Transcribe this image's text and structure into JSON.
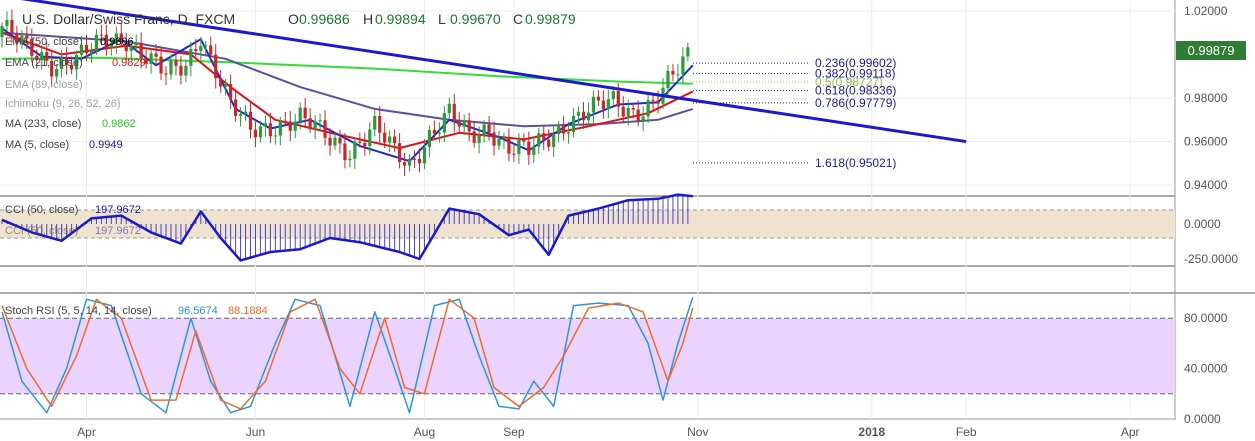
{
  "header": {
    "symbol_title": "U.S. Dollar/Swiss Franc, D, FXCM",
    "ohlc": [
      {
        "key": "O",
        "value": "0.99686"
      },
      {
        "key": "H",
        "value": "0.99894"
      },
      {
        "key": "L",
        "value": "0.99670"
      },
      {
        "key": "C",
        "value": "0.99879"
      }
    ]
  },
  "legend": [
    {
      "label": "EMA (50, close)",
      "value": "0.9806",
      "color": "#000000"
    },
    {
      "label": "EMA (21, close)",
      "value": "0.9829",
      "color": "#e0101a"
    },
    {
      "label": "EMA (89, close)",
      "value": "",
      "color": "#9aa0a6"
    },
    {
      "label": "Ichimoku (9, 26, 52, 26)",
      "value": "",
      "color": "#9aa0a6"
    },
    {
      "label": "MA (233, close)",
      "value": "0.9862",
      "color": "#22cc22"
    },
    {
      "label": "MA (5, close)",
      "value": "0.9949",
      "color": "#1a1aaa"
    }
  ],
  "price_badge": {
    "value": "0.99879",
    "color": "#2e7d32"
  },
  "fibonacci": [
    {
      "ratio": "0.236",
      "level": "0.99602",
      "value": 0.99602,
      "color": "#1a1aaa"
    },
    {
      "ratio": "0.382",
      "level": "0.99118",
      "value": 0.99118,
      "color": "#1a1aaa"
    },
    {
      "ratio": "0.5",
      "level": "0.98727",
      "value": 0.98727,
      "color": "#8bc34a"
    },
    {
      "ratio": "0.618",
      "level": "0.98336",
      "value": 0.98336,
      "color": "#1a1aaa"
    },
    {
      "ratio": "0.786",
      "level": "0.97779",
      "value": 0.97779,
      "color": "#1a1aaa"
    },
    {
      "ratio": "1.618",
      "level": "0.95021",
      "value": 0.95021,
      "color": "#1a1aaa"
    }
  ],
  "cci": {
    "label": "CCI (50, close)",
    "value": "197.9672",
    "color": "#1a1aaa"
  },
  "stoch": {
    "label": "Stoch RSI (5, 5, 14, 14, close)",
    "k_value": "96.5674",
    "k_color": "#2b96e0",
    "d_value": "88.1884",
    "d_color": "#f06a2a"
  },
  "chart_data": [
    {
      "type": "candlestick",
      "title": "U.S. Dollar/Swiss Franc, D, FXCM",
      "ylim": [
        0.935,
        1.025
      ],
      "yticks": [
        "1.02000",
        "0.98000",
        "0.96000",
        "0.94000"
      ],
      "ytick_values": [
        1.02,
        0.98,
        0.96,
        0.94
      ],
      "xticks": [
        "Apr",
        "Jun",
        "Aug",
        "Sep",
        "Nov",
        "2018",
        "Feb",
        "Apr"
      ],
      "xtick_indices": [
        17,
        51,
        85,
        103,
        140,
        175,
        194,
        227
      ],
      "close_path": [
        {
          "i": 0,
          "v": 1.013
        },
        {
          "i": 5,
          "v": 1.002
        },
        {
          "i": 10,
          "v": 0.996
        },
        {
          "i": 15,
          "v": 0.998
        },
        {
          "i": 20,
          "v": 1.005
        },
        {
          "i": 25,
          "v": 1.008
        },
        {
          "i": 30,
          "v": 0.997
        },
        {
          "i": 33,
          "v": 0.99
        },
        {
          "i": 37,
          "v": 0.995
        },
        {
          "i": 40,
          "v": 1.01
        },
        {
          "i": 43,
          "v": 0.993
        },
        {
          "i": 46,
          "v": 0.976
        },
        {
          "i": 50,
          "v": 0.965
        },
        {
          "i": 55,
          "v": 0.968
        },
        {
          "i": 60,
          "v": 0.97
        },
        {
          "i": 65,
          "v": 0.963
        },
        {
          "i": 70,
          "v": 0.956
        },
        {
          "i": 75,
          "v": 0.966
        },
        {
          "i": 79,
          "v": 0.955
        },
        {
          "i": 82,
          "v": 0.95
        },
        {
          "i": 86,
          "v": 0.963
        },
        {
          "i": 90,
          "v": 0.972
        },
        {
          "i": 94,
          "v": 0.962
        },
        {
          "i": 98,
          "v": 0.967
        },
        {
          "i": 102,
          "v": 0.957
        },
        {
          "i": 106,
          "v": 0.955
        },
        {
          "i": 109,
          "v": 0.96
        },
        {
          "i": 114,
          "v": 0.97
        },
        {
          "i": 118,
          "v": 0.974
        },
        {
          "i": 123,
          "v": 0.978
        },
        {
          "i": 127,
          "v": 0.974
        },
        {
          "i": 131,
          "v": 0.978
        },
        {
          "i": 135,
          "v": 0.989
        },
        {
          "i": 138,
          "v": 0.999
        }
      ],
      "trendline": {
        "from": {
          "i": 0,
          "v": 1.027
        },
        "to": {
          "i": 194,
          "v": 0.96
        }
      },
      "ma_233": [
        {
          "i": 0,
          "v": 0.998
        },
        {
          "i": 20,
          "v": 0.9985
        },
        {
          "i": 45,
          "v": 0.9965
        },
        {
          "i": 75,
          "v": 0.9935
        },
        {
          "i": 100,
          "v": 0.99
        },
        {
          "i": 125,
          "v": 0.9875
        },
        {
          "i": 139,
          "v": 0.9865
        }
      ],
      "ema_89": [
        {
          "i": 0,
          "v": 1.01
        },
        {
          "i": 25,
          "v": 1.006
        },
        {
          "i": 45,
          "v": 0.998
        },
        {
          "i": 60,
          "v": 0.985
        },
        {
          "i": 75,
          "v": 0.975
        },
        {
          "i": 90,
          "v": 0.97
        },
        {
          "i": 105,
          "v": 0.967
        },
        {
          "i": 120,
          "v": 0.968
        },
        {
          "i": 132,
          "v": 0.97
        },
        {
          "i": 139,
          "v": 0.975
        }
      ],
      "ema_21": [
        {
          "i": 0,
          "v": 1.01
        },
        {
          "i": 12,
          "v": 1.0
        },
        {
          "i": 25,
          "v": 1.004
        },
        {
          "i": 38,
          "v": 1.0
        },
        {
          "i": 46,
          "v": 0.985
        },
        {
          "i": 55,
          "v": 0.97
        },
        {
          "i": 68,
          "v": 0.963
        },
        {
          "i": 80,
          "v": 0.957
        },
        {
          "i": 92,
          "v": 0.964
        },
        {
          "i": 105,
          "v": 0.961
        },
        {
          "i": 118,
          "v": 0.967
        },
        {
          "i": 130,
          "v": 0.973
        },
        {
          "i": 139,
          "v": 0.983
        }
      ],
      "ma_5": [
        {
          "i": 0,
          "v": 1.012
        },
        {
          "i": 8,
          "v": 0.999
        },
        {
          "i": 16,
          "v": 0.998
        },
        {
          "i": 24,
          "v": 1.007
        },
        {
          "i": 31,
          "v": 0.995
        },
        {
          "i": 40,
          "v": 1.007
        },
        {
          "i": 47,
          "v": 0.975
        },
        {
          "i": 54,
          "v": 0.966
        },
        {
          "i": 62,
          "v": 0.97
        },
        {
          "i": 72,
          "v": 0.958
        },
        {
          "i": 82,
          "v": 0.951
        },
        {
          "i": 90,
          "v": 0.97
        },
        {
          "i": 100,
          "v": 0.962
        },
        {
          "i": 106,
          "v": 0.956
        },
        {
          "i": 114,
          "v": 0.968
        },
        {
          "i": 124,
          "v": 0.977
        },
        {
          "i": 132,
          "v": 0.978
        },
        {
          "i": 139,
          "v": 0.995
        }
      ]
    },
    {
      "type": "line",
      "title": "CCI (50, close)",
      "ylim": [
        -300,
        200
      ],
      "yticks": [
        "0.0000",
        "-250.0000"
      ],
      "ytick_values": [
        0,
        -250
      ],
      "band": [
        -100,
        100
      ],
      "series": [
        {
          "name": "CCI (50, close)",
          "points": [
            {
              "i": 0,
              "v": 30
            },
            {
              "i": 6,
              "v": -60
            },
            {
              "i": 12,
              "v": -120
            },
            {
              "i": 18,
              "v": 40
            },
            {
              "i": 24,
              "v": 60
            },
            {
              "i": 30,
              "v": -60
            },
            {
              "i": 36,
              "v": -140
            },
            {
              "i": 40,
              "v": 90
            },
            {
              "i": 44,
              "v": -100
            },
            {
              "i": 48,
              "v": -260
            },
            {
              "i": 54,
              "v": -200
            },
            {
              "i": 60,
              "v": -180
            },
            {
              "i": 66,
              "v": -100
            },
            {
              "i": 72,
              "v": -130
            },
            {
              "i": 80,
              "v": -200
            },
            {
              "i": 84,
              "v": -250
            },
            {
              "i": 90,
              "v": 110
            },
            {
              "i": 96,
              "v": 70
            },
            {
              "i": 102,
              "v": -80
            },
            {
              "i": 106,
              "v": -40
            },
            {
              "i": 110,
              "v": -220
            },
            {
              "i": 114,
              "v": 60
            },
            {
              "i": 120,
              "v": 110
            },
            {
              "i": 126,
              "v": 170
            },
            {
              "i": 132,
              "v": 180
            },
            {
              "i": 136,
              "v": 210
            },
            {
              "i": 139,
              "v": 197.9672
            }
          ]
        }
      ]
    },
    {
      "type": "line",
      "title": "Stoch RSI (5, 5, 14, 14, close)",
      "ylim": [
        0,
        100
      ],
      "yticks": [
        "80.0000",
        "40.0000",
        "0.0000"
      ],
      "ytick_values": [
        80,
        40,
        0
      ],
      "band": [
        20,
        80
      ],
      "series": [
        {
          "name": "K",
          "points": [
            {
              "i": 0,
              "v": 85
            },
            {
              "i": 4,
              "v": 30
            },
            {
              "i": 9,
              "v": 5
            },
            {
              "i": 13,
              "v": 40
            },
            {
              "i": 17,
              "v": 95
            },
            {
              "i": 22,
              "v": 90
            },
            {
              "i": 28,
              "v": 20
            },
            {
              "i": 33,
              "v": 5
            },
            {
              "i": 38,
              "v": 80
            },
            {
              "i": 42,
              "v": 30
            },
            {
              "i": 46,
              "v": 5
            },
            {
              "i": 50,
              "v": 10
            },
            {
              "i": 55,
              "v": 60
            },
            {
              "i": 59,
              "v": 95
            },
            {
              "i": 64,
              "v": 90
            },
            {
              "i": 70,
              "v": 10
            },
            {
              "i": 75,
              "v": 85
            },
            {
              "i": 79,
              "v": 40
            },
            {
              "i": 82,
              "v": 5
            },
            {
              "i": 87,
              "v": 90
            },
            {
              "i": 92,
              "v": 95
            },
            {
              "i": 96,
              "v": 50
            },
            {
              "i": 100,
              "v": 10
            },
            {
              "i": 104,
              "v": 8
            },
            {
              "i": 107,
              "v": 30
            },
            {
              "i": 111,
              "v": 10
            },
            {
              "i": 115,
              "v": 90
            },
            {
              "i": 120,
              "v": 92
            },
            {
              "i": 126,
              "v": 90
            },
            {
              "i": 130,
              "v": 60
            },
            {
              "i": 133,
              "v": 15
            },
            {
              "i": 136,
              "v": 60
            },
            {
              "i": 139,
              "v": 96.5674
            }
          ]
        },
        {
          "name": "D",
          "points": [
            {
              "i": 0,
              "v": 90
            },
            {
              "i": 5,
              "v": 40
            },
            {
              "i": 10,
              "v": 10
            },
            {
              "i": 15,
              "v": 50
            },
            {
              "i": 19,
              "v": 95
            },
            {
              "i": 24,
              "v": 80
            },
            {
              "i": 30,
              "v": 15
            },
            {
              "i": 35,
              "v": 15
            },
            {
              "i": 39,
              "v": 70
            },
            {
              "i": 44,
              "v": 15
            },
            {
              "i": 48,
              "v": 8
            },
            {
              "i": 53,
              "v": 30
            },
            {
              "i": 58,
              "v": 85
            },
            {
              "i": 63,
              "v": 95
            },
            {
              "i": 68,
              "v": 40
            },
            {
              "i": 72,
              "v": 20
            },
            {
              "i": 77,
              "v": 80
            },
            {
              "i": 81,
              "v": 25
            },
            {
              "i": 85,
              "v": 20
            },
            {
              "i": 90,
              "v": 95
            },
            {
              "i": 95,
              "v": 80
            },
            {
              "i": 99,
              "v": 25
            },
            {
              "i": 104,
              "v": 10
            },
            {
              "i": 109,
              "v": 25
            },
            {
              "i": 113,
              "v": 50
            },
            {
              "i": 118,
              "v": 88
            },
            {
              "i": 124,
              "v": 92
            },
            {
              "i": 129,
              "v": 85
            },
            {
              "i": 134,
              "v": 30
            },
            {
              "i": 137,
              "v": 60
            },
            {
              "i": 139,
              "v": 88.1884
            }
          ]
        }
      ]
    }
  ]
}
